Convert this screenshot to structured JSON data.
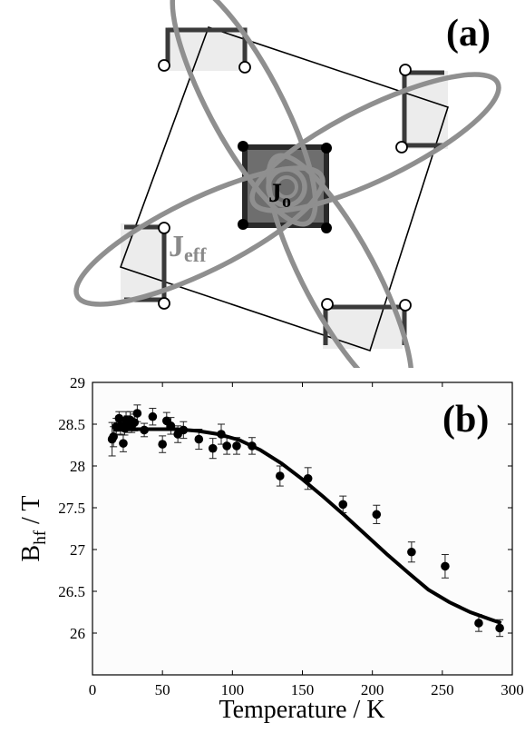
{
  "panel_a": {
    "label": "(a)",
    "center_symbol": "J",
    "center_subscript": "o",
    "coupling_symbol": "J",
    "coupling_subscript": "eff"
  },
  "chart_data": {
    "type": "scatter",
    "panel_label": "(b)",
    "title": "",
    "xlabel": "Temperature / K",
    "ylabel_main": "B",
    "ylabel_sub": "hf",
    "ylabel_unit": " / T",
    "xlim": [
      0,
      300
    ],
    "ylim": [
      25.5,
      29
    ],
    "xticks": [
      0,
      50,
      100,
      150,
      200,
      250,
      300
    ],
    "yticks": [
      26,
      26.5,
      27,
      27.5,
      28,
      28.5,
      29
    ],
    "grid": false,
    "legend": "none",
    "series": [
      {
        "kind": "points_with_error_bars",
        "points": [
          {
            "x": 14,
            "y": 28.32,
            "err": 0.2
          },
          {
            "x": 15,
            "y": 28.35,
            "err": 0.12
          },
          {
            "x": 17,
            "y": 28.47,
            "err": 0.1
          },
          {
            "x": 19,
            "y": 28.57,
            "err": 0.08
          },
          {
            "x": 20,
            "y": 28.48,
            "err": 0.1
          },
          {
            "x": 22,
            "y": 28.27,
            "err": 0.1
          },
          {
            "x": 23,
            "y": 28.45,
            "err": 0.08
          },
          {
            "x": 24,
            "y": 28.55,
            "err": 0.1
          },
          {
            "x": 25,
            "y": 28.5,
            "err": 0.1
          },
          {
            "x": 27,
            "y": 28.55,
            "err": 0.1
          },
          {
            "x": 28,
            "y": 28.48,
            "err": 0.08
          },
          {
            "x": 30,
            "y": 28.52,
            "err": 0.1
          },
          {
            "x": 32,
            "y": 28.63,
            "err": 0.1
          },
          {
            "x": 37,
            "y": 28.43,
            "err": 0.08
          },
          {
            "x": 43,
            "y": 28.59,
            "err": 0.1
          },
          {
            "x": 50,
            "y": 28.26,
            "err": 0.1
          },
          {
            "x": 53,
            "y": 28.54,
            "err": 0.1
          },
          {
            "x": 56,
            "y": 28.48,
            "err": 0.1
          },
          {
            "x": 61,
            "y": 28.38,
            "err": 0.1
          },
          {
            "x": 65,
            "y": 28.43,
            "err": 0.1
          },
          {
            "x": 76,
            "y": 28.32,
            "err": 0.12
          },
          {
            "x": 86,
            "y": 28.21,
            "err": 0.12
          },
          {
            "x": 92,
            "y": 28.38,
            "err": 0.12
          },
          {
            "x": 96,
            "y": 28.24,
            "err": 0.1
          },
          {
            "x": 103,
            "y": 28.24,
            "err": 0.1
          },
          {
            "x": 114,
            "y": 28.24,
            "err": 0.1
          },
          {
            "x": 134,
            "y": 27.88,
            "err": 0.12
          },
          {
            "x": 154,
            "y": 27.85,
            "err": 0.13
          },
          {
            "x": 179,
            "y": 27.54,
            "err": 0.1
          },
          {
            "x": 203,
            "y": 27.42,
            "err": 0.11
          },
          {
            "x": 228,
            "y": 26.97,
            "err": 0.12
          },
          {
            "x": 252,
            "y": 26.8,
            "err": 0.14
          },
          {
            "x": 276,
            "y": 26.12,
            "err": 0.1
          },
          {
            "x": 291,
            "y": 26.06,
            "err": 0.1
          }
        ]
      },
      {
        "kind": "fit_line",
        "x": [
          15,
          30,
          45,
          60,
          75,
          90,
          105,
          120,
          135,
          150,
          165,
          180,
          195,
          210,
          225,
          240,
          255,
          270,
          285,
          292
        ],
        "y": [
          28.43,
          28.44,
          28.44,
          28.44,
          28.42,
          28.38,
          28.31,
          28.19,
          28.03,
          27.84,
          27.63,
          27.41,
          27.18,
          26.95,
          26.73,
          26.52,
          26.37,
          26.25,
          26.16,
          26.12
        ]
      }
    ]
  }
}
